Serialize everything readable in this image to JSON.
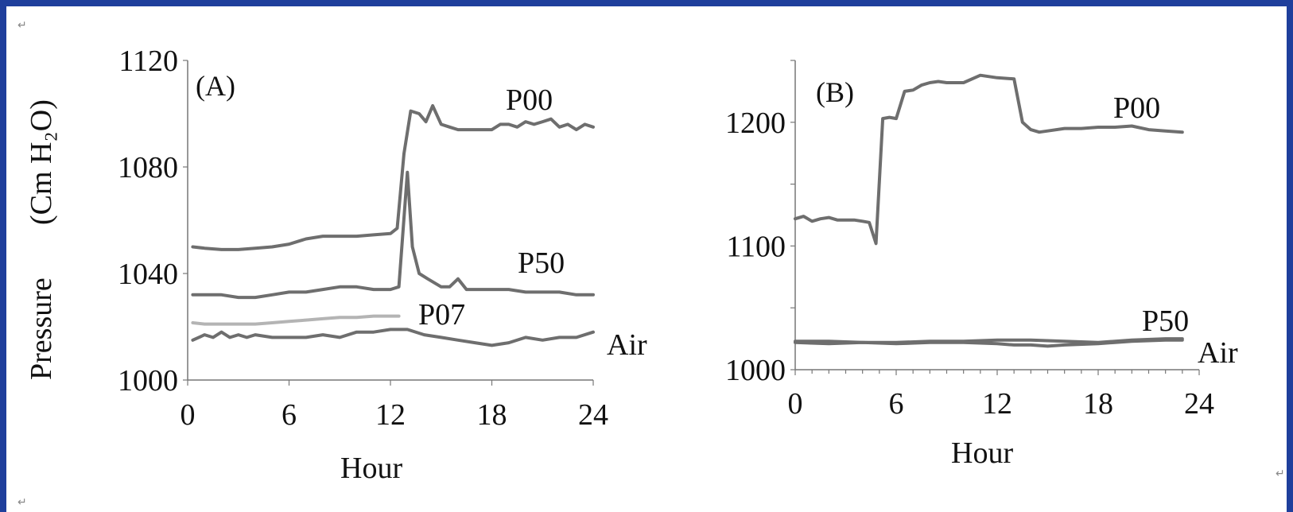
{
  "chart_data": [
    {
      "type": "line",
      "panel_label": "(A)",
      "xlabel": "Hour",
      "ylabel": "Pressure",
      "ylabel_unit": "(Cm H₂O)",
      "xticks": [
        0,
        6,
        12,
        18,
        24
      ],
      "yticks": [
        1000,
        1040,
        1080,
        1120
      ],
      "xlim": [
        0,
        24
      ],
      "ylim": [
        1000,
        1120
      ],
      "grid": false,
      "colors": {
        "P00": "#6e6e6e",
        "P50": "#6e6e6e",
        "P07": "#b4b4b4",
        "Air": "#6e6e6e"
      },
      "series": [
        {
          "name": "P00",
          "x": [
            0.3,
            1,
            2,
            3,
            4,
            5,
            6,
            6.5,
            7,
            8,
            9,
            10,
            11,
            12,
            12.4,
            12.8,
            13.2,
            13.7,
            14.1,
            14.5,
            15,
            15.5,
            16,
            17,
            18,
            18.5,
            19,
            19.5,
            20,
            20.5,
            21,
            21.5,
            22,
            22.5,
            23,
            23.5,
            24
          ],
          "y": [
            1050,
            1049.5,
            1049,
            1049,
            1049.5,
            1050,
            1051,
            1052,
            1053,
            1054,
            1054,
            1054,
            1054.5,
            1055,
            1057,
            1085,
            1101,
            1100,
            1097,
            1103,
            1096,
            1095,
            1094,
            1094,
            1094,
            1096,
            1096,
            1095,
            1097,
            1096,
            1097,
            1098,
            1095,
            1096,
            1094,
            1096,
            1095
          ]
        },
        {
          "name": "P50",
          "x": [
            0.3,
            1,
            2,
            3,
            4,
            5,
            6,
            7,
            8,
            9,
            10,
            11,
            12,
            12.5,
            13.0,
            13.3,
            13.7,
            14.2,
            15,
            15.5,
            16,
            16.5,
            17,
            18,
            19,
            20,
            21,
            22,
            23,
            24
          ],
          "y": [
            1032,
            1032,
            1032,
            1031,
            1031,
            1032,
            1033,
            1033,
            1034,
            1035,
            1035,
            1034,
            1034,
            1035,
            1078,
            1050,
            1040,
            1038,
            1035,
            1035,
            1038,
            1034,
            1034,
            1034,
            1034,
            1033,
            1033,
            1033,
            1032,
            1032
          ]
        },
        {
          "name": "P07",
          "x": [
            0.3,
            1,
            2,
            3,
            4,
            5,
            6,
            7,
            8,
            9,
            10,
            11,
            12,
            12.5
          ],
          "y": [
            1021.5,
            1021,
            1021,
            1021,
            1021,
            1021.5,
            1022,
            1022.5,
            1023,
            1023.5,
            1023.5,
            1024,
            1024,
            1024
          ]
        },
        {
          "name": "Air",
          "x": [
            0.3,
            1,
            1.5,
            2,
            2.5,
            3,
            3.5,
            4,
            5,
            6,
            7,
            8,
            9,
            10,
            11,
            12,
            12.5,
            13,
            14,
            15,
            16,
            17,
            18,
            19,
            20,
            21,
            22,
            23,
            24
          ],
          "y": [
            1015,
            1017,
            1016,
            1018,
            1016,
            1017,
            1016,
            1017,
            1016,
            1016,
            1016,
            1017,
            1016,
            1018,
            1018,
            1019,
            1019,
            1019,
            1017,
            1016,
            1015,
            1014,
            1013,
            1014,
            1016,
            1015,
            1016,
            1016,
            1018
          ]
        }
      ]
    },
    {
      "type": "line",
      "panel_label": "(B)",
      "xlabel": "Hour",
      "xticks": [
        0,
        6,
        12,
        18,
        24
      ],
      "yticks": [
        1000,
        1100,
        1200
      ],
      "xlim": [
        0,
        24
      ],
      "ylim": [
        1000,
        1250
      ],
      "grid": false,
      "colors": {
        "P00": "#6e6e6e",
        "P50": "#6e6e6e",
        "Air": "#6e6e6e"
      },
      "series": [
        {
          "name": "P00",
          "x": [
            0,
            0.5,
            1,
            1.5,
            2,
            2.5,
            3,
            3.5,
            4,
            4.4,
            4.8,
            5.2,
            5.6,
            6.0,
            6.5,
            7,
            7.5,
            8,
            8.5,
            9,
            10,
            11,
            12,
            13,
            13.5,
            14,
            14.5,
            15,
            16,
            17,
            18,
            19,
            20,
            21,
            22,
            23
          ],
          "y": [
            1122,
            1124,
            1120,
            1122,
            1123,
            1121,
            1121,
            1121,
            1120,
            1119,
            1102,
            1203,
            1204,
            1203,
            1225,
            1226,
            1230,
            1232,
            1233,
            1232,
            1232,
            1238,
            1236,
            1235,
            1200,
            1194,
            1192,
            1193,
            1195,
            1195,
            1196,
            1196,
            1197,
            1194,
            1193,
            1192
          ]
        },
        {
          "name": "P50",
          "x": [
            0,
            2,
            4,
            6,
            8,
            10,
            12,
            14,
            16,
            18,
            20,
            22,
            23
          ],
          "y": [
            1023,
            1023,
            1022,
            1022,
            1023,
            1023,
            1024,
            1024,
            1023,
            1022,
            1024,
            1025,
            1025
          ]
        },
        {
          "name": "Air",
          "x": [
            0,
            2,
            4,
            6,
            8,
            10,
            12,
            13,
            14,
            15,
            16,
            18,
            20,
            22,
            23
          ],
          "y": [
            1022,
            1021,
            1022,
            1021,
            1022,
            1022,
            1021,
            1020,
            1020,
            1019,
            1020,
            1021,
            1023,
            1024,
            1024
          ]
        }
      ]
    }
  ]
}
